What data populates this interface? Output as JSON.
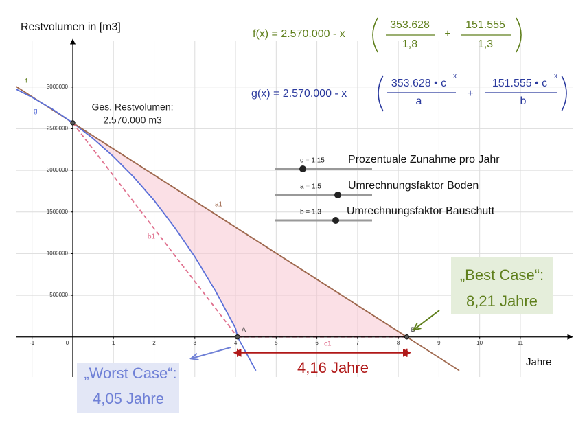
{
  "chart_data": {
    "type": "line",
    "y_label": "Restvolumen in [m3]",
    "x_label": "Jahre",
    "xlim": [
      -1.4,
      12.3
    ],
    "ylim": [
      -480000,
      3550000
    ],
    "xticks": [
      -1,
      0,
      1,
      2,
      3,
      4,
      5,
      6,
      7,
      8,
      9,
      10,
      11
    ],
    "yticks": [
      500000,
      1000000,
      1500000,
      2000000,
      2500000,
      3000000
    ],
    "grid": true,
    "series": [
      {
        "name": "f",
        "color": "#a06a50",
        "x": [
          -1.4,
          9.5
        ],
        "values": [
          3008257,
          -403890
        ]
      },
      {
        "name": "g",
        "color": "#5a6fd8",
        "x": [
          -1.4,
          -1,
          -0.5,
          0,
          0.5,
          1,
          1.5,
          2,
          2.5,
          3,
          3.5,
          4,
          4.05,
          4.5
        ],
        "values": [
          2975600,
          2876377,
          2734275,
          2570000,
          2381078,
          2164817,
          1918253,
          1638079,
          1317351,
          962425,
          558723,
          105092,
          0,
          -403775
        ]
      }
    ],
    "points": {
      "x": [
        0,
        4.05,
        8.21
      ],
      "y": [
        2570000,
        0,
        0
      ],
      "labels": [
        null,
        "A",
        "B"
      ]
    },
    "segments": [
      {
        "label": "a1",
        "color": "#a06a50",
        "dashed": false,
        "from": 0,
        "to": 2
      },
      {
        "label": "b1",
        "color": "#e0708e",
        "dashed": true,
        "from": 0,
        "to": 1
      },
      {
        "label": "c1",
        "color": "#e0708e",
        "dashed": true,
        "from": 1,
        "to": 2
      }
    ],
    "area_color": "#f7c6d2",
    "start_note": [
      "Ges. Restvolumen:",
      "2.570.000 m3"
    ]
  },
  "formulas": {
    "f": {
      "lhs": "f(x) = 2.570.000 - x",
      "num1": "353.628",
      "den1": "1,8",
      "op": "+",
      "num2": "151.555",
      "den2": "1,3",
      "color": "#5f7f1c"
    },
    "g": {
      "lhs": "g(x) = 2.570.000 - x",
      "num1": "353.628 • c",
      "sup1": "x",
      "den1": "a",
      "op": "+",
      "num2": "151.555 • c",
      "sup2": "x",
      "den2": "b",
      "color": "#2b3a9e"
    }
  },
  "sliders": [
    {
      "label": "c = 1.15",
      "text": "Prozentuale Zunahme pro Jahr"
    },
    {
      "label": "a = 1.5",
      "text": "Umrechnungsfaktor Boden"
    },
    {
      "label": "b = 1.3",
      "text": "Umrechnungsfaktor Bauschutt"
    }
  ],
  "callouts": {
    "best": [
      "„Best Case“:",
      "8,21 Jahre"
    ],
    "worst": [
      "„Worst Case“:",
      "4,05 Jahre"
    ],
    "difference": "4,16 Jahre"
  }
}
